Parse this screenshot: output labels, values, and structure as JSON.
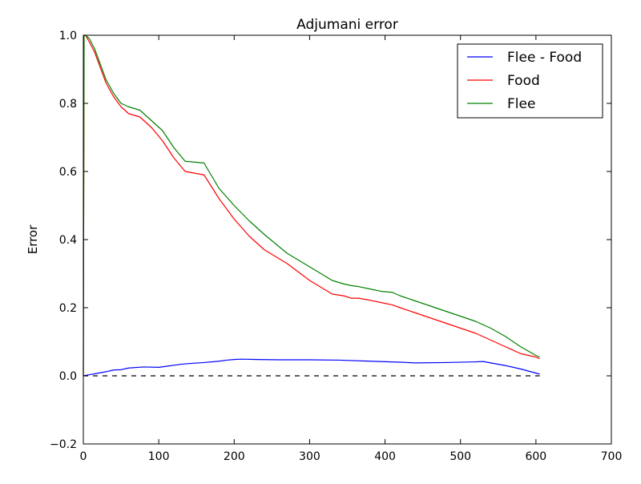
{
  "chart_data": {
    "type": "line",
    "title": "Adjumani error",
    "xlabel": "",
    "ylabel": "Error",
    "xlim": [
      0,
      700
    ],
    "ylim": [
      -0.2,
      1.0
    ],
    "xticks": [
      "0",
      "100",
      "200",
      "300",
      "400",
      "500",
      "600",
      "700"
    ],
    "yticks": [
      "−0.2",
      "0.0",
      "0.2",
      "0.4",
      "0.6",
      "0.8",
      "1.0"
    ],
    "grid": false,
    "legend_position": "top-right",
    "reference_line": {
      "y": 0.0,
      "x_range": [
        0,
        605
      ],
      "style": "dashed",
      "color": "#000000"
    },
    "series": [
      {
        "name": "Flee - Food",
        "color": "#0000ff",
        "x": [
          0,
          10,
          20,
          30,
          40,
          50,
          60,
          80,
          100,
          110,
          120,
          130,
          140,
          160,
          180,
          190,
          200,
          210,
          230,
          260,
          300,
          340,
          380,
          420,
          440,
          480,
          520,
          530,
          540,
          560,
          580,
          605
        ],
        "y": [
          0.0,
          0.004,
          0.008,
          0.012,
          0.017,
          0.018,
          0.023,
          0.026,
          0.025,
          0.028,
          0.031,
          0.034,
          0.036,
          0.039,
          0.043,
          0.046,
          0.048,
          0.049,
          0.048,
          0.047,
          0.047,
          0.046,
          0.043,
          0.04,
          0.038,
          0.039,
          0.041,
          0.042,
          0.038,
          0.03,
          0.02,
          0.005
        ]
      },
      {
        "name": "Food",
        "color": "#ff0000",
        "x": [
          0,
          1,
          3,
          8,
          15,
          20,
          25,
          30,
          35,
          40,
          50,
          60,
          75,
          90,
          105,
          120,
          135,
          160,
          180,
          200,
          220,
          240,
          270,
          300,
          330,
          345,
          355,
          365,
          380,
          395,
          410,
          420,
          440,
          460,
          480,
          500,
          520,
          540,
          560,
          580,
          600,
          605
        ],
        "y": [
          0.0,
          1.0,
          1.0,
          0.98,
          0.95,
          0.92,
          0.89,
          0.86,
          0.84,
          0.82,
          0.79,
          0.77,
          0.76,
          0.73,
          0.69,
          0.64,
          0.6,
          0.59,
          0.52,
          0.46,
          0.41,
          0.37,
          0.33,
          0.28,
          0.24,
          0.235,
          0.228,
          0.228,
          0.222,
          0.215,
          0.208,
          0.2,
          0.185,
          0.17,
          0.155,
          0.14,
          0.125,
          0.105,
          0.085,
          0.065,
          0.055,
          0.05
        ]
      },
      {
        "name": "Flee",
        "color": "#008000",
        "x": [
          0,
          1,
          3,
          8,
          15,
          20,
          25,
          30,
          35,
          40,
          50,
          60,
          75,
          90,
          105,
          120,
          135,
          160,
          180,
          200,
          220,
          240,
          270,
          300,
          330,
          345,
          355,
          365,
          380,
          395,
          410,
          420,
          440,
          460,
          480,
          500,
          520,
          540,
          560,
          580,
          600,
          605
        ],
        "y": [
          0.0,
          1.0,
          1.0,
          0.99,
          0.96,
          0.93,
          0.9,
          0.87,
          0.85,
          0.83,
          0.8,
          0.79,
          0.78,
          0.75,
          0.72,
          0.67,
          0.63,
          0.625,
          0.55,
          0.5,
          0.455,
          0.415,
          0.36,
          0.32,
          0.28,
          0.27,
          0.265,
          0.262,
          0.255,
          0.248,
          0.245,
          0.235,
          0.22,
          0.205,
          0.19,
          0.175,
          0.16,
          0.14,
          0.115,
          0.085,
          0.06,
          0.055
        ]
      }
    ]
  }
}
